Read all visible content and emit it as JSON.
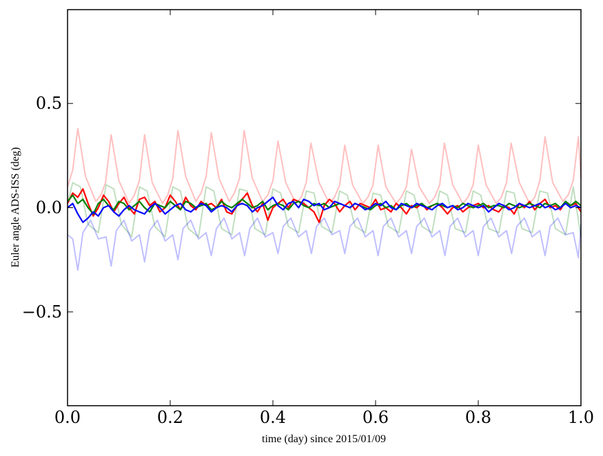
{
  "chart_data": {
    "type": "line",
    "xlabel": "time (day) since 2015/01/09",
    "ylabel": "Euler angle ADS-ISS (deg)",
    "xlim": [
      0.0,
      1.0
    ],
    "ylim": [
      -0.95,
      0.95
    ],
    "xticks": [
      0.0,
      0.2,
      0.4,
      0.6,
      0.8,
      1.0
    ],
    "xtick_labels": [
      "0.0",
      "0.2",
      "0.4",
      "0.6",
      "0.8",
      "1.0"
    ],
    "yticks": [
      -0.5,
      0.0,
      0.5
    ],
    "ytick_labels": [
      "−0.5",
      "0.0",
      "0.5"
    ],
    "grid": false,
    "series": [
      {
        "color": "#ff0000",
        "alpha": 0.25,
        "x": [
          0.0,
          0.01,
          0.02,
          0.035,
          0.055,
          0.065,
          0.074,
          0.085,
          0.1,
          0.12,
          0.13,
          0.14,
          0.15,
          0.165,
          0.185,
          0.195,
          0.205,
          0.215,
          0.23,
          0.25,
          0.26,
          0.27,
          0.28,
          0.295,
          0.315,
          0.325,
          0.335,
          0.344,
          0.36,
          0.38,
          0.39,
          0.4,
          0.41,
          0.425,
          0.445,
          0.455,
          0.465,
          0.474,
          0.49,
          0.51,
          0.52,
          0.53,
          0.54,
          0.555,
          0.575,
          0.585,
          0.595,
          0.605,
          0.62,
          0.64,
          0.65,
          0.66,
          0.67,
          0.685,
          0.705,
          0.715,
          0.725,
          0.734,
          0.75,
          0.77,
          0.78,
          0.79,
          0.8,
          0.815,
          0.835,
          0.845,
          0.855,
          0.864,
          0.88,
          0.9,
          0.91,
          0.92,
          0.93,
          0.945,
          0.965,
          0.975,
          0.985,
          0.995,
          1.0
        ],
        "y": [
          0.1,
          0.18,
          0.38,
          0.15,
          0.03,
          0.06,
          0.12,
          0.35,
          0.13,
          0.02,
          0.06,
          0.13,
          0.35,
          0.12,
          0.02,
          0.06,
          0.14,
          0.37,
          0.15,
          0.03,
          0.07,
          0.15,
          0.36,
          0.14,
          0.03,
          0.07,
          0.14,
          0.37,
          0.14,
          0.03,
          0.06,
          0.13,
          0.32,
          0.12,
          0.02,
          0.05,
          0.12,
          0.31,
          0.12,
          0.02,
          0.05,
          0.11,
          0.3,
          0.11,
          0.02,
          0.05,
          0.11,
          0.3,
          0.1,
          0.02,
          0.05,
          0.1,
          0.28,
          0.1,
          0.02,
          0.05,
          0.11,
          0.31,
          0.11,
          0.02,
          0.05,
          0.11,
          0.3,
          0.11,
          0.02,
          0.05,
          0.12,
          0.31,
          0.12,
          0.02,
          0.05,
          0.13,
          0.34,
          0.12,
          0.03,
          0.06,
          0.13,
          0.34,
          0.14
        ]
      },
      {
        "color": "#008000",
        "alpha": 0.25,
        "x": [
          0.0,
          0.01,
          0.025,
          0.04,
          0.06,
          0.075,
          0.09,
          0.105,
          0.125,
          0.14,
          0.155,
          0.17,
          0.19,
          0.205,
          0.22,
          0.235,
          0.255,
          0.27,
          0.285,
          0.3,
          0.32,
          0.335,
          0.35,
          0.365,
          0.385,
          0.4,
          0.415,
          0.43,
          0.45,
          0.465,
          0.48,
          0.495,
          0.515,
          0.53,
          0.545,
          0.56,
          0.58,
          0.595,
          0.61,
          0.625,
          0.645,
          0.66,
          0.675,
          0.69,
          0.71,
          0.725,
          0.74,
          0.755,
          0.775,
          0.79,
          0.805,
          0.82,
          0.84,
          0.855,
          0.87,
          0.885,
          0.905,
          0.92,
          0.935,
          0.95,
          0.97,
          0.985,
          1.0
        ],
        "y": [
          0.02,
          0.12,
          0.1,
          -0.08,
          -0.12,
          0.11,
          0.09,
          -0.08,
          -0.14,
          0.1,
          0.08,
          -0.09,
          -0.14,
          0.1,
          0.08,
          -0.1,
          -0.14,
          0.1,
          0.08,
          -0.1,
          -0.13,
          0.09,
          0.08,
          -0.1,
          -0.13,
          0.09,
          0.07,
          -0.09,
          -0.12,
          0.08,
          0.07,
          -0.09,
          -0.12,
          0.08,
          0.06,
          -0.09,
          -0.12,
          0.07,
          0.06,
          -0.09,
          -0.12,
          0.08,
          0.06,
          -0.09,
          -0.12,
          0.08,
          0.06,
          -0.1,
          -0.12,
          0.08,
          0.06,
          -0.1,
          -0.12,
          0.08,
          0.07,
          -0.1,
          -0.12,
          0.08,
          0.07,
          -0.1,
          -0.13,
          0.1,
          -0.14
        ]
      },
      {
        "color": "#0000ff",
        "alpha": 0.25,
        "x": [
          0.0,
          0.01,
          0.02,
          0.03,
          0.045,
          0.06,
          0.075,
          0.085,
          0.095,
          0.11,
          0.125,
          0.14,
          0.15,
          0.16,
          0.175,
          0.19,
          0.205,
          0.215,
          0.225,
          0.24,
          0.255,
          0.27,
          0.28,
          0.29,
          0.305,
          0.32,
          0.335,
          0.345,
          0.355,
          0.37,
          0.385,
          0.4,
          0.41,
          0.42,
          0.435,
          0.45,
          0.465,
          0.475,
          0.485,
          0.5,
          0.515,
          0.53,
          0.54,
          0.55,
          0.565,
          0.58,
          0.595,
          0.605,
          0.615,
          0.63,
          0.645,
          0.66,
          0.67,
          0.68,
          0.695,
          0.71,
          0.725,
          0.735,
          0.745,
          0.76,
          0.775,
          0.79,
          0.8,
          0.81,
          0.825,
          0.84,
          0.855,
          0.865,
          0.875,
          0.89,
          0.905,
          0.92,
          0.93,
          0.94,
          0.955,
          0.97,
          0.985,
          0.995,
          1.0
        ],
        "y": [
          -0.13,
          -0.15,
          -0.3,
          -0.12,
          -0.06,
          -0.15,
          -0.14,
          -0.28,
          -0.11,
          -0.06,
          -0.16,
          -0.13,
          -0.26,
          -0.11,
          -0.06,
          -0.16,
          -0.13,
          -0.25,
          -0.1,
          -0.06,
          -0.15,
          -0.12,
          -0.23,
          -0.1,
          -0.05,
          -0.15,
          -0.12,
          -0.23,
          -0.1,
          -0.05,
          -0.14,
          -0.12,
          -0.22,
          -0.09,
          -0.05,
          -0.14,
          -0.11,
          -0.22,
          -0.09,
          -0.05,
          -0.13,
          -0.11,
          -0.22,
          -0.09,
          -0.05,
          -0.14,
          -0.11,
          -0.23,
          -0.09,
          -0.05,
          -0.14,
          -0.11,
          -0.22,
          -0.09,
          -0.05,
          -0.14,
          -0.11,
          -0.23,
          -0.09,
          -0.05,
          -0.14,
          -0.11,
          -0.23,
          -0.09,
          -0.05,
          -0.14,
          -0.11,
          -0.22,
          -0.09,
          -0.05,
          -0.14,
          -0.11,
          -0.23,
          -0.09,
          -0.05,
          -0.13,
          -0.12,
          -0.24,
          -0.08
        ]
      },
      {
        "color": "#ff0000",
        "alpha": 1.0,
        "x": [
          0.0,
          0.01,
          0.02,
          0.03,
          0.04,
          0.05,
          0.06,
          0.07,
          0.08,
          0.09,
          0.1,
          0.11,
          0.12,
          0.13,
          0.14,
          0.15,
          0.16,
          0.17,
          0.18,
          0.19,
          0.2,
          0.21,
          0.22,
          0.23,
          0.24,
          0.25,
          0.26,
          0.27,
          0.28,
          0.29,
          0.3,
          0.31,
          0.32,
          0.33,
          0.34,
          0.35,
          0.36,
          0.37,
          0.38,
          0.39,
          0.4,
          0.41,
          0.42,
          0.43,
          0.44,
          0.45,
          0.46,
          0.47,
          0.48,
          0.49,
          0.5,
          0.51,
          0.52,
          0.53,
          0.54,
          0.55,
          0.56,
          0.57,
          0.58,
          0.59,
          0.6,
          0.61,
          0.62,
          0.63,
          0.64,
          0.65,
          0.66,
          0.67,
          0.68,
          0.69,
          0.7,
          0.71,
          0.72,
          0.73,
          0.74,
          0.75,
          0.76,
          0.77,
          0.78,
          0.79,
          0.8,
          0.81,
          0.82,
          0.83,
          0.84,
          0.85,
          0.86,
          0.87,
          0.88,
          0.89,
          0.9,
          0.91,
          0.92,
          0.93,
          0.94,
          0.95,
          0.96,
          0.97,
          0.98,
          0.99,
          1.0
        ],
        "y": [
          0.02,
          0.07,
          0.05,
          0.09,
          0.02,
          -0.04,
          0.0,
          0.06,
          0.03,
          -0.02,
          0.02,
          0.05,
          0.0,
          -0.03,
          0.04,
          0.05,
          0.01,
          0.03,
          -0.02,
          0.0,
          0.06,
          0.03,
          -0.01,
          0.05,
          0.01,
          -0.01,
          0.03,
          0.01,
          0.02,
          0.0,
          0.04,
          -0.02,
          -0.03,
          0.01,
          0.04,
          0.07,
          0.01,
          -0.02,
          0.02,
          -0.06,
          0.0,
          0.02,
          0.04,
          0.0,
          0.04,
          0.03,
          0.02,
          0.0,
          -0.02,
          -0.07,
          0.01,
          0.04,
          0.02,
          -0.02,
          0.01,
          0.03,
          -0.01,
          0.02,
          0.01,
          0.0,
          0.04,
          -0.01,
          0.0,
          -0.02,
          0.02,
          0.0,
          -0.03,
          0.01,
          0.0,
          0.02,
          -0.01,
          0.01,
          0.02,
          0.0,
          -0.03,
          0.0,
          0.01,
          -0.02,
          0.0,
          0.01,
          0.02,
          0.0,
          0.01,
          -0.01,
          -0.02,
          0.01,
          0.0,
          -0.03,
          0.02,
          0.0,
          0.03,
          -0.01,
          0.02,
          0.04,
          0.0,
          0.01,
          -0.01,
          0.03,
          0.01,
          0.02,
          -0.02
        ]
      },
      {
        "color": "#008000",
        "alpha": 1.0,
        "x": [
          0.0,
          0.01,
          0.02,
          0.03,
          0.04,
          0.05,
          0.06,
          0.07,
          0.08,
          0.09,
          0.1,
          0.11,
          0.12,
          0.13,
          0.14,
          0.15,
          0.16,
          0.17,
          0.18,
          0.19,
          0.2,
          0.21,
          0.22,
          0.23,
          0.24,
          0.25,
          0.26,
          0.27,
          0.28,
          0.29,
          0.3,
          0.31,
          0.32,
          0.33,
          0.34,
          0.35,
          0.36,
          0.37,
          0.38,
          0.39,
          0.4,
          0.41,
          0.42,
          0.43,
          0.44,
          0.45,
          0.46,
          0.47,
          0.48,
          0.49,
          0.5,
          0.51,
          0.52,
          0.53,
          0.54,
          0.55,
          0.56,
          0.57,
          0.58,
          0.59,
          0.6,
          0.61,
          0.62,
          0.63,
          0.64,
          0.65,
          0.66,
          0.67,
          0.68,
          0.69,
          0.7,
          0.71,
          0.72,
          0.73,
          0.74,
          0.75,
          0.76,
          0.77,
          0.78,
          0.79,
          0.8,
          0.81,
          0.82,
          0.83,
          0.84,
          0.85,
          0.86,
          0.87,
          0.88,
          0.89,
          0.9,
          0.91,
          0.92,
          0.93,
          0.94,
          0.95,
          0.96,
          0.97,
          0.98,
          0.99,
          1.0
        ],
        "y": [
          0.03,
          0.06,
          0.02,
          0.04,
          0.0,
          -0.03,
          0.02,
          0.04,
          0.01,
          -0.01,
          0.03,
          0.02,
          -0.01,
          0.01,
          0.03,
          0.0,
          -0.02,
          0.02,
          0.01,
          0.0,
          0.03,
          0.01,
          -0.01,
          0.03,
          0.02,
          0.0,
          0.01,
          0.02,
          -0.01,
          0.0,
          0.03,
          0.01,
          0.0,
          0.02,
          0.04,
          0.02,
          0.0,
          0.01,
          0.03,
          -0.01,
          0.01,
          0.02,
          0.01,
          -0.01,
          0.02,
          0.03,
          0.01,
          0.0,
          0.02,
          0.01,
          0.02,
          0.0,
          0.01,
          0.02,
          0.01,
          0.0,
          0.02,
          0.01,
          0.0,
          -0.01,
          0.01,
          0.02,
          0.0,
          0.01,
          -0.01,
          0.01,
          0.02,
          0.0,
          0.01,
          0.02,
          0.0,
          0.01,
          0.02,
          0.01,
          0.0,
          0.01,
          0.0,
          0.02,
          0.01,
          0.0,
          0.01,
          0.02,
          0.0,
          0.01,
          0.01,
          0.0,
          0.02,
          0.01,
          0.0,
          0.01,
          0.02,
          0.01,
          0.0,
          0.02,
          0.01,
          0.02,
          0.0,
          0.03,
          0.01,
          0.03,
          0.01
        ]
      },
      {
        "color": "#0000ff",
        "alpha": 1.0,
        "x": [
          0.0,
          0.01,
          0.02,
          0.03,
          0.04,
          0.05,
          0.06,
          0.07,
          0.08,
          0.09,
          0.1,
          0.11,
          0.12,
          0.13,
          0.14,
          0.15,
          0.16,
          0.17,
          0.18,
          0.19,
          0.2,
          0.21,
          0.22,
          0.23,
          0.24,
          0.25,
          0.26,
          0.27,
          0.28,
          0.29,
          0.3,
          0.31,
          0.32,
          0.33,
          0.34,
          0.35,
          0.36,
          0.37,
          0.38,
          0.39,
          0.4,
          0.41,
          0.42,
          0.43,
          0.44,
          0.45,
          0.46,
          0.47,
          0.48,
          0.49,
          0.5,
          0.51,
          0.52,
          0.53,
          0.54,
          0.55,
          0.56,
          0.57,
          0.58,
          0.59,
          0.6,
          0.61,
          0.62,
          0.63,
          0.64,
          0.65,
          0.66,
          0.67,
          0.68,
          0.69,
          0.7,
          0.71,
          0.72,
          0.73,
          0.74,
          0.75,
          0.76,
          0.77,
          0.78,
          0.79,
          0.8,
          0.81,
          0.82,
          0.83,
          0.84,
          0.85,
          0.86,
          0.87,
          0.88,
          0.89,
          0.9,
          0.91,
          0.92,
          0.93,
          0.94,
          0.95,
          0.96,
          0.97,
          0.98,
          0.99,
          1.0
        ],
        "y": [
          0.0,
          0.02,
          -0.03,
          -0.07,
          -0.05,
          -0.02,
          -0.04,
          0.0,
          0.01,
          -0.02,
          -0.04,
          -0.01,
          0.01,
          -0.01,
          -0.02,
          -0.03,
          0.0,
          0.02,
          0.0,
          -0.03,
          -0.01,
          0.01,
          0.02,
          -0.01,
          -0.02,
          0.0,
          0.02,
          0.01,
          -0.02,
          0.0,
          0.01,
          0.0,
          -0.02,
          0.01,
          0.02,
          0.01,
          -0.02,
          0.0,
          0.01,
          0.03,
          0.05,
          0.01,
          -0.01,
          0.02,
          0.03,
          0.0,
          0.04,
          0.03,
          0.01,
          0.02,
          -0.01,
          0.0,
          0.03,
          0.02,
          0.01,
          0.0,
          0.02,
          0.01,
          -0.01,
          0.0,
          0.02,
          0.01,
          0.03,
          0.0,
          -0.01,
          0.02,
          0.01,
          0.0,
          0.02,
          0.01,
          0.0,
          -0.01,
          0.01,
          0.02,
          0.0,
          0.01,
          -0.01,
          0.0,
          0.02,
          0.01,
          0.0,
          0.01,
          -0.02,
          0.0,
          0.02,
          0.01,
          -0.01,
          0.0,
          0.02,
          0.01,
          0.0,
          0.01,
          0.02,
          0.0,
          0.01,
          -0.01,
          0.0,
          0.02,
          0.0,
          0.01,
          0.0
        ]
      }
    ]
  }
}
